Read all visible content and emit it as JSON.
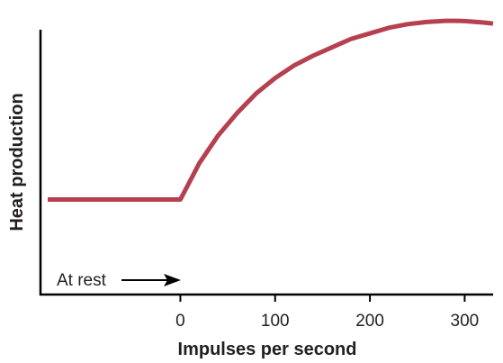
{
  "chart_data": {
    "type": "line",
    "xlabel": "Impulses per second",
    "ylabel": "Heat production",
    "x_ticks": [
      0,
      100,
      200,
      300
    ],
    "x_tick_labels": [
      "0",
      "100",
      "200",
      "300"
    ],
    "xlim": [
      -140,
      330
    ],
    "ylim": [
      0,
      100
    ],
    "y_ticks": [],
    "grid": false,
    "series": [
      {
        "color": "#b5404f",
        "x": [
          -140,
          -120,
          -100,
          -80,
          -60,
          -40,
          -20,
          0,
          20,
          40,
          60,
          80,
          100,
          120,
          140,
          160,
          180,
          200,
          220,
          240,
          260,
          280,
          290,
          300,
          320,
          330
        ],
        "y": [
          35,
          35,
          35,
          35,
          35,
          35,
          35,
          35,
          48,
          58,
          66,
          73,
          78.5,
          83,
          86.5,
          89.5,
          92.5,
          94.5,
          96.5,
          97.8,
          98.6,
          99,
          99,
          98.9,
          98.4,
          98
        ]
      }
    ],
    "annotations": [
      {
        "text": "At rest",
        "arrow": true,
        "target_x": 0
      }
    ]
  }
}
